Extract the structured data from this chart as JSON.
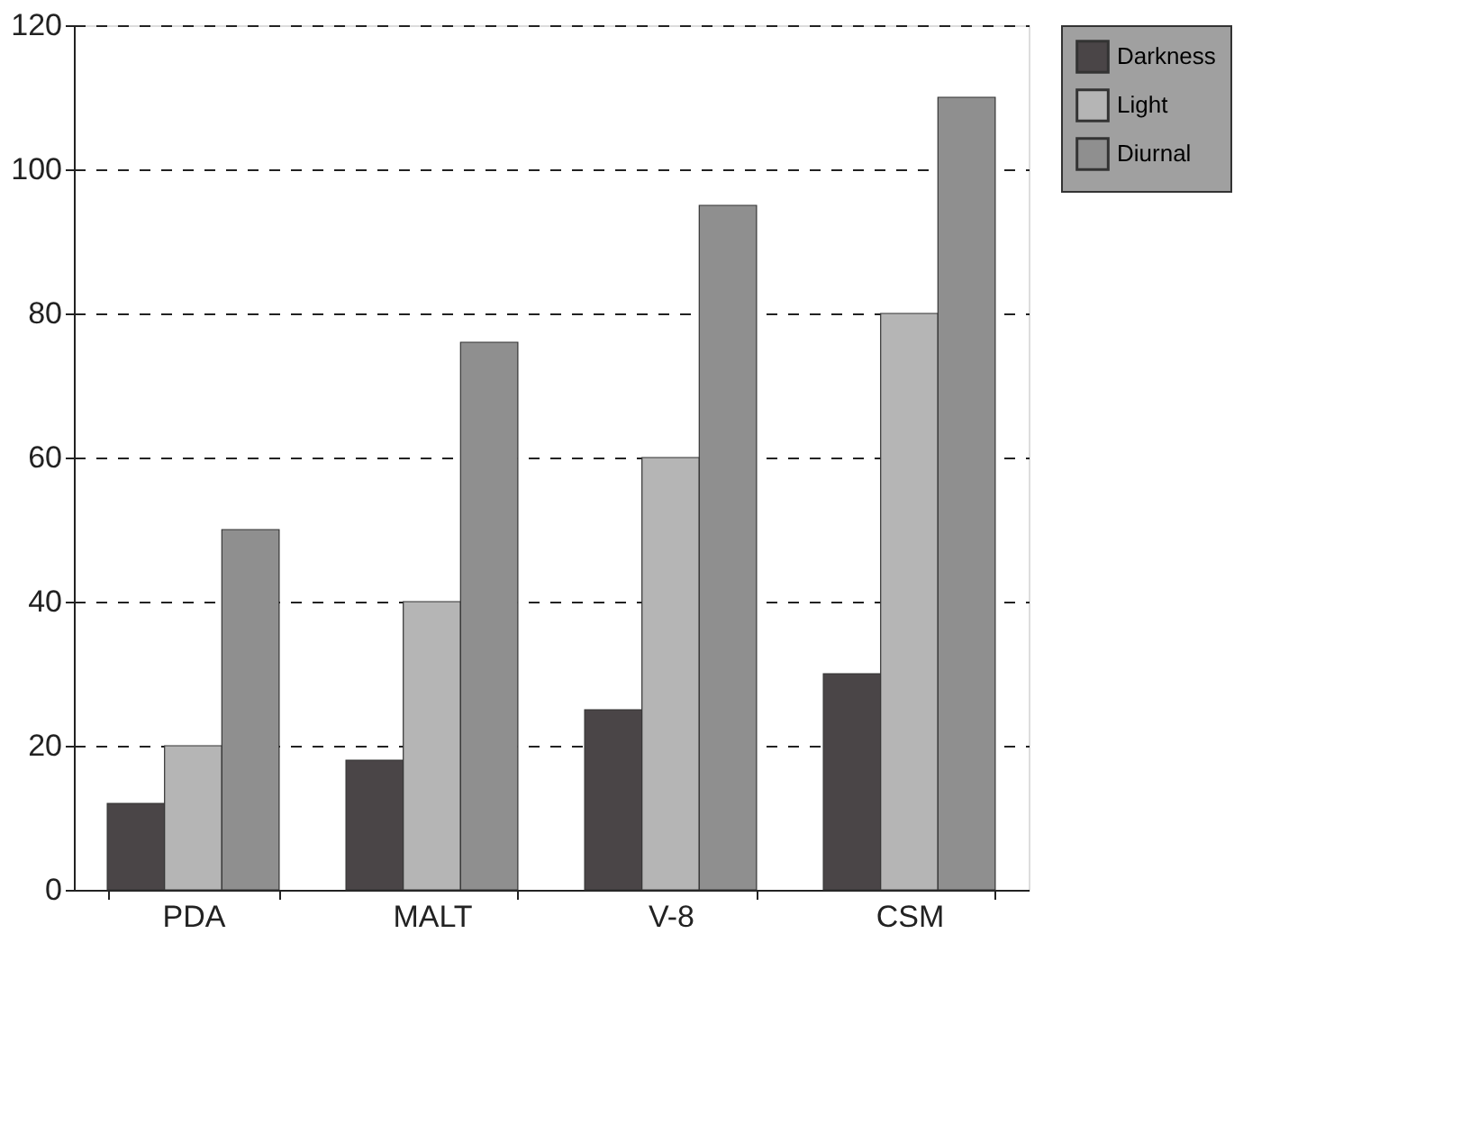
{
  "chart_data": {
    "type": "bar",
    "categories": [
      "PDA",
      "MALT",
      "V-8",
      "CSM"
    ],
    "series": [
      {
        "name": "Darkness",
        "color": "#4a4547",
        "values": [
          12,
          18,
          25,
          30
        ]
      },
      {
        "name": "Light",
        "color": "#b5b5b5",
        "values": [
          20,
          40,
          60,
          80
        ]
      },
      {
        "name": "Diurnal",
        "color": "#8f8f8f",
        "values": [
          50,
          76,
          95,
          110
        ]
      }
    ],
    "ylim": [
      0,
      120
    ],
    "yticks": [
      0,
      20,
      40,
      60,
      80,
      100,
      120
    ],
    "grid": "y",
    "line_style": "dashed",
    "legend": "right"
  }
}
